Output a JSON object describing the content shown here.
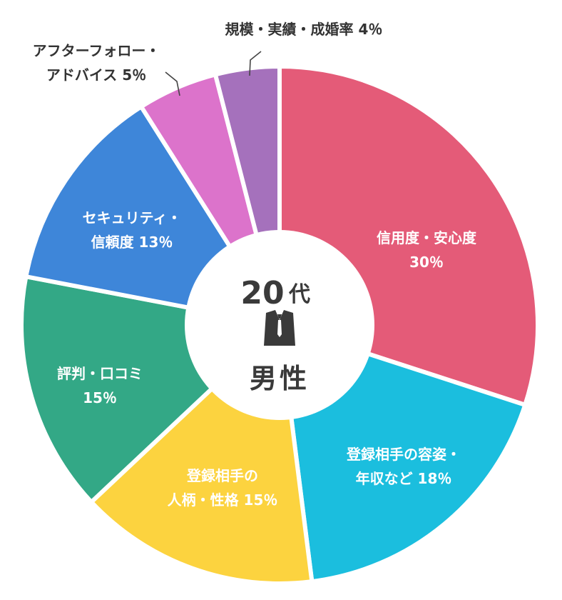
{
  "chart_data": {
    "type": "pie",
    "style": "donut",
    "categories": [
      "信用度・安心度",
      "登録相手の容姿・年収など",
      "登録相手の人柄・性格",
      "評判・口コミ",
      "セキュリティ・信頼度",
      "アフターフォロー・アドバイス",
      "規模・実績・成婚率"
    ],
    "values": [
      30,
      18,
      15,
      15,
      13,
      5,
      4
    ],
    "unit": "%",
    "colors": [
      "#E45B78",
      "#1BBEDE",
      "#FCD33F",
      "#33A886",
      "#3E86D9",
      "#DC73CB",
      "#A571BC"
    ],
    "center": {
      "line1": "20",
      "line1_suffix": "代",
      "line2": "男性",
      "icon": "suit-icon"
    },
    "slice_labels": [
      {
        "lines": [
          "信用度・安心度",
          "30％"
        ],
        "placement": "inside"
      },
      {
        "lines": [
          "登録相手の容姿・",
          "年収など 18％"
        ],
        "placement": "inside"
      },
      {
        "lines": [
          "登録相手の",
          "人柄・性格 15％"
        ],
        "placement": "inside"
      },
      {
        "lines": [
          "評判・口コミ",
          "15％"
        ],
        "placement": "inside"
      },
      {
        "lines": [
          "セキュリティ・",
          "信頼度 13％"
        ],
        "placement": "inside"
      },
      {
        "lines": [
          "アフターフォロー・",
          "アドバイス 5％"
        ],
        "placement": "outside"
      },
      {
        "lines": [
          "規模・実績・成婚率 4％"
        ],
        "placement": "outside"
      }
    ]
  }
}
